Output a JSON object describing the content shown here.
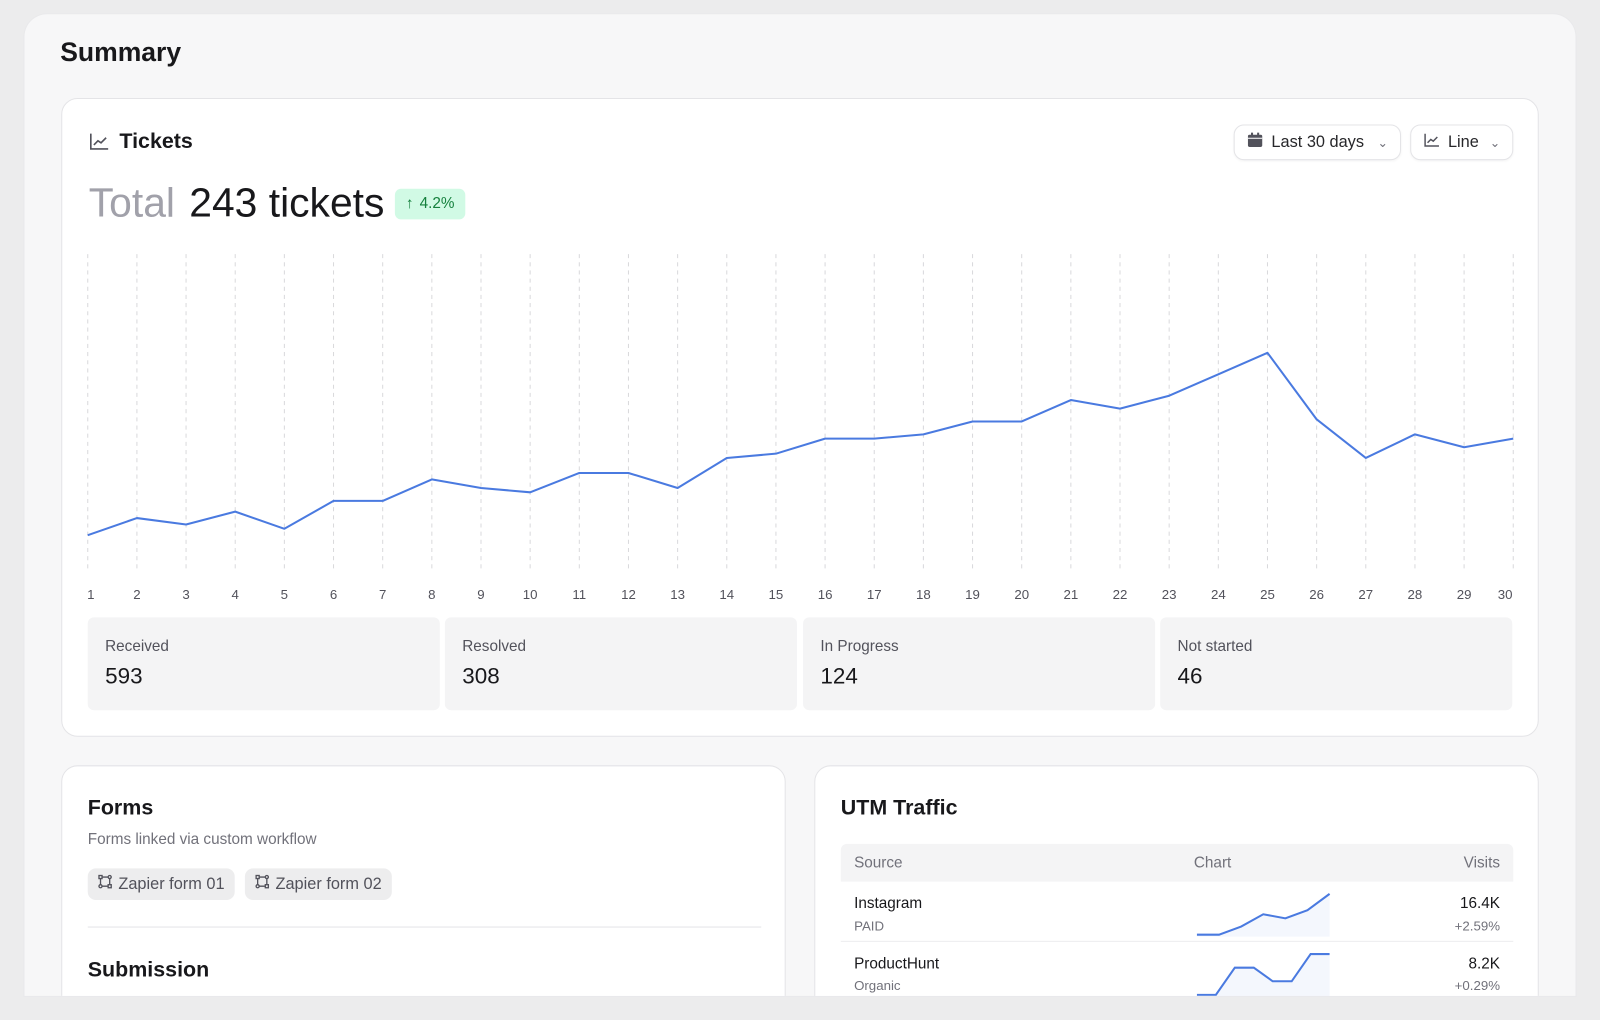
{
  "page_title": "Summary",
  "tickets": {
    "title": "Tickets",
    "icon": "line-chart-icon",
    "total_label": "Total",
    "total_value": "243 tickets",
    "change": "4.2%",
    "range_button": "Last 30 days",
    "type_button": "Line",
    "stats": [
      {
        "label": "Received",
        "value": "593"
      },
      {
        "label": "Resolved",
        "value": "308"
      },
      {
        "label": "In Progress",
        "value": "124"
      },
      {
        "label": "Not started",
        "value": "46"
      }
    ]
  },
  "chart_data": {
    "type": "line",
    "title": "Tickets",
    "x": [
      1,
      2,
      3,
      4,
      5,
      6,
      7,
      8,
      9,
      10,
      11,
      12,
      13,
      14,
      15,
      16,
      17,
      18,
      19,
      20,
      21,
      22,
      23,
      24,
      25,
      26,
      27,
      28,
      29,
      30
    ],
    "categories": [
      "1",
      "2",
      "3",
      "4",
      "5",
      "6",
      "7",
      "8",
      "9",
      "10",
      "11",
      "12",
      "13",
      "14",
      "15",
      "16",
      "17",
      "18",
      "19",
      "20",
      "21",
      "22",
      "23",
      "24",
      "25",
      "26",
      "27",
      "28",
      "29",
      "30"
    ],
    "series": [
      {
        "name": "Tickets",
        "values": [
          24,
          32,
          29,
          35,
          27,
          40,
          40,
          50,
          46,
          44,
          53,
          53,
          46,
          60,
          62,
          69,
          69,
          71,
          77,
          77,
          87,
          83,
          89,
          99,
          109,
          78,
          60,
          71,
          65,
          69
        ]
      }
    ],
    "ylim": [
      0,
      155
    ],
    "grid": "vertical-dashed",
    "color": "#4a7ae0",
    "xlabel": "",
    "ylabel": ""
  },
  "forms": {
    "title": "Forms",
    "subtitle": "Forms linked via custom workflow",
    "chips": [
      "Zapier form 01",
      "Zapier form 02"
    ],
    "submission_title": "Submission"
  },
  "utm": {
    "title": "UTM Traffic",
    "columns": [
      "Source",
      "Chart",
      "Visits"
    ],
    "rows": [
      {
        "source": "Instagram",
        "type": "PAID",
        "visits": "16.4K",
        "change": "+2.59%",
        "spark": [
          0,
          0,
          2,
          5,
          4,
          6,
          10
        ]
      },
      {
        "source": "ProductHunt",
        "type": "Organic",
        "visits": "8.2K",
        "change": "+0.29%",
        "spark": [
          0,
          0,
          6,
          6,
          3,
          3,
          9,
          9
        ]
      }
    ]
  }
}
